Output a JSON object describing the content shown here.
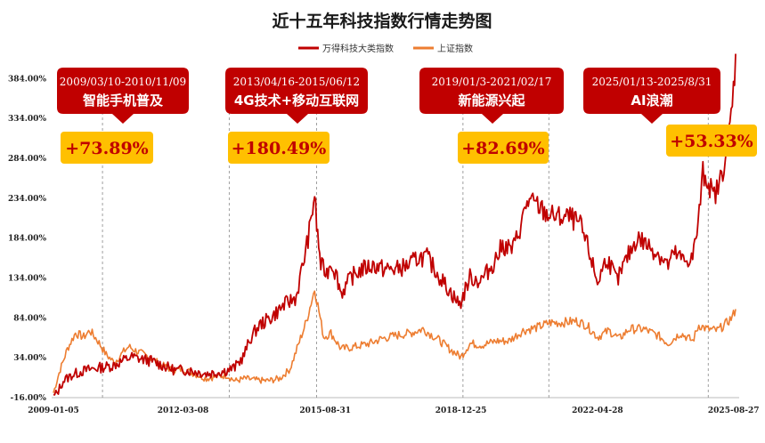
{
  "chart_data": {
    "type": "line",
    "title": "近十五年科技指数行情走势图",
    "xlabel": "",
    "ylabel": "",
    "ylim": [
      -16,
      420
    ],
    "y_ticks": [
      "-16.00%",
      "34.00%",
      "84.00%",
      "134.00%",
      "184.00%",
      "234.00%",
      "284.00%",
      "334.00%",
      "384.00%"
    ],
    "y_tick_values": [
      -16,
      34,
      84,
      134,
      184,
      234,
      284,
      334,
      384
    ],
    "x_ticks": [
      "2009-01-05",
      "2012-03-08",
      "2015-08-31",
      "2018-12-25",
      "2022-04-28",
      "2025-08-27"
    ],
    "x_tick_values": [
      2009.01,
      2012.18,
      2015.66,
      2018.98,
      2022.32,
      2025.65
    ],
    "x_range": [
      2009.01,
      2025.7
    ],
    "legend": [
      {
        "name": "万得科技大类指数",
        "color": "#c00000"
      },
      {
        "name": "上证指数",
        "color": "#ed7d31"
      }
    ],
    "series": [
      {
        "name": "万得科技大类指数",
        "color": "#c00000",
        "points": [
          [
            2009.01,
            -15
          ],
          [
            2009.1,
            -10
          ],
          [
            2009.25,
            5
          ],
          [
            2009.45,
            12
          ],
          [
            2009.7,
            17
          ],
          [
            2009.95,
            20
          ],
          [
            2010.2,
            22
          ],
          [
            2010.45,
            24
          ],
          [
            2010.7,
            30
          ],
          [
            2010.9,
            35
          ],
          [
            2011.1,
            33
          ],
          [
            2011.4,
            30
          ],
          [
            2011.7,
            24
          ],
          [
            2012.0,
            18
          ],
          [
            2012.18,
            19
          ],
          [
            2012.45,
            17
          ],
          [
            2012.75,
            14
          ],
          [
            2012.95,
            15
          ],
          [
            2013.25,
            18
          ],
          [
            2013.45,
            22
          ],
          [
            2013.65,
            35
          ],
          [
            2013.85,
            60
          ],
          [
            2014.05,
            75
          ],
          [
            2014.35,
            85
          ],
          [
            2014.65,
            100
          ],
          [
            2014.95,
            110
          ],
          [
            2015.15,
            160
          ],
          [
            2015.3,
            200
          ],
          [
            2015.4,
            240
          ],
          [
            2015.45,
            200
          ],
          [
            2015.55,
            150
          ],
          [
            2015.7,
            140
          ],
          [
            2015.8,
            155
          ],
          [
            2015.95,
            135
          ],
          [
            2016.05,
            115
          ],
          [
            2016.3,
            135
          ],
          [
            2016.55,
            145
          ],
          [
            2016.85,
            150
          ],
          [
            2017.1,
            145
          ],
          [
            2017.4,
            145
          ],
          [
            2017.7,
            150
          ],
          [
            2017.95,
            160
          ],
          [
            2018.15,
            160
          ],
          [
            2018.4,
            140
          ],
          [
            2018.7,
            118
          ],
          [
            2018.95,
            100
          ],
          [
            2019.2,
            135
          ],
          [
            2019.45,
            130
          ],
          [
            2019.75,
            150
          ],
          [
            2020.0,
            175
          ],
          [
            2020.25,
            170
          ],
          [
            2020.45,
            200
          ],
          [
            2020.6,
            230
          ],
          [
            2020.85,
            225
          ],
          [
            2021.05,
            215
          ],
          [
            2021.35,
            210
          ],
          [
            2021.65,
            210
          ],
          [
            2021.9,
            200
          ],
          [
            2022.1,
            170
          ],
          [
            2022.32,
            128
          ],
          [
            2022.55,
            160
          ],
          [
            2022.8,
            130
          ],
          [
            2023.05,
            160
          ],
          [
            2023.3,
            185
          ],
          [
            2023.55,
            175
          ],
          [
            2023.8,
            165
          ],
          [
            2024.05,
            150
          ],
          [
            2024.2,
            165
          ],
          [
            2024.45,
            155
          ],
          [
            2024.65,
            160
          ],
          [
            2024.78,
            200
          ],
          [
            2024.9,
            265
          ],
          [
            2025.04,
            255
          ],
          [
            2025.15,
            235
          ],
          [
            2025.3,
            250
          ],
          [
            2025.5,
            300
          ],
          [
            2025.62,
            350
          ],
          [
            2025.7,
            415
          ]
        ]
      },
      {
        "name": "上证指数",
        "color": "#ed7d31",
        "points": [
          [
            2009.01,
            -10
          ],
          [
            2009.15,
            15
          ],
          [
            2009.35,
            45
          ],
          [
            2009.55,
            65
          ],
          [
            2009.75,
            60
          ],
          [
            2009.9,
            68
          ],
          [
            2010.1,
            55
          ],
          [
            2010.3,
            38
          ],
          [
            2010.5,
            28
          ],
          [
            2010.7,
            40
          ],
          [
            2010.85,
            48
          ],
          [
            2011.05,
            42
          ],
          [
            2011.35,
            35
          ],
          [
            2011.65,
            25
          ],
          [
            2011.95,
            18
          ],
          [
            2012.18,
            20
          ],
          [
            2012.45,
            14
          ],
          [
            2012.75,
            8
          ],
          [
            2012.95,
            10
          ],
          [
            2013.25,
            12
          ],
          [
            2013.45,
            5
          ],
          [
            2013.7,
            8
          ],
          [
            2013.95,
            6
          ],
          [
            2014.25,
            5
          ],
          [
            2014.55,
            8
          ],
          [
            2014.8,
            20
          ],
          [
            2015.0,
            50
          ],
          [
            2015.2,
            80
          ],
          [
            2015.4,
            120
          ],
          [
            2015.48,
            100
          ],
          [
            2015.62,
            60
          ],
          [
            2015.8,
            65
          ],
          [
            2016.05,
            45
          ],
          [
            2016.4,
            48
          ],
          [
            2016.75,
            52
          ],
          [
            2017.05,
            58
          ],
          [
            2017.4,
            62
          ],
          [
            2017.75,
            65
          ],
          [
            2018.05,
            70
          ],
          [
            2018.4,
            58
          ],
          [
            2018.7,
            45
          ],
          [
            2018.98,
            35
          ],
          [
            2019.2,
            52
          ],
          [
            2019.5,
            50
          ],
          [
            2019.85,
            55
          ],
          [
            2020.15,
            55
          ],
          [
            2020.5,
            68
          ],
          [
            2020.85,
            72
          ],
          [
            2021.15,
            78
          ],
          [
            2021.45,
            78
          ],
          [
            2021.8,
            80
          ],
          [
            2022.05,
            75
          ],
          [
            2022.32,
            60
          ],
          [
            2022.6,
            68
          ],
          [
            2022.85,
            58
          ],
          [
            2023.1,
            70
          ],
          [
            2023.45,
            70
          ],
          [
            2023.8,
            62
          ],
          [
            2024.05,
            52
          ],
          [
            2024.35,
            65
          ],
          [
            2024.65,
            55
          ],
          [
            2024.8,
            75
          ],
          [
            2025.0,
            70
          ],
          [
            2025.25,
            68
          ],
          [
            2025.45,
            76
          ],
          [
            2025.62,
            85
          ],
          [
            2025.7,
            95
          ]
        ]
      }
    ],
    "vlines": [
      2010.21,
      2013.31,
      2015.45,
      2019.03,
      2021.13,
      2025.03
    ],
    "annotations": [
      {
        "date": "2009/03/10-2010/11/09",
        "theme": "智能手机普及",
        "gain": "+73.89%"
      },
      {
        "date": "2013/04/16-2015/06/12",
        "theme": "4G技术+移动互联网",
        "gain": "+180.49%"
      },
      {
        "date": "2019/01/3-2021/02/17",
        "theme": "新能源兴起",
        "gain": "+82.69%"
      },
      {
        "date": "2025/01/13-2025/8/31",
        "theme": "AI浪潮",
        "gain": "+53.33%"
      }
    ]
  }
}
